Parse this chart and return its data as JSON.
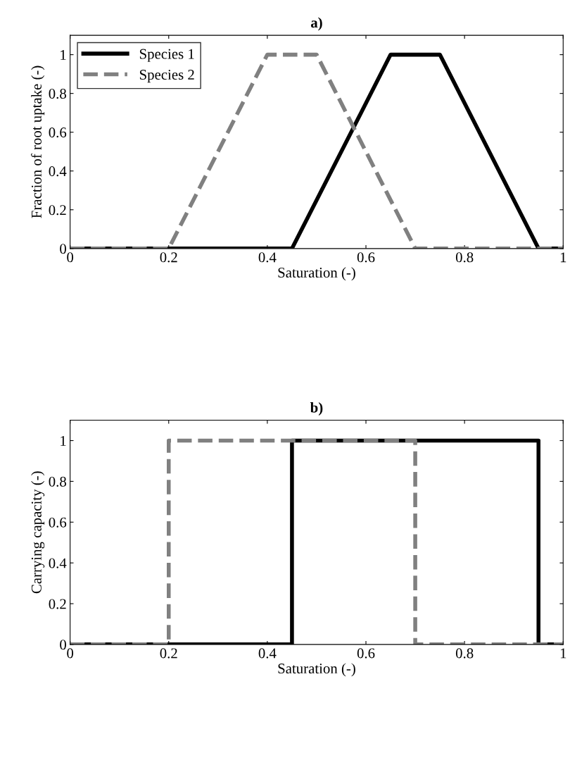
{
  "chart_data": [
    {
      "type": "line",
      "title": "a)",
      "xlabel": "Saturation (-)",
      "ylabel": "Fraction of root uptake (-)",
      "xlim": [
        0,
        1
      ],
      "ylim": [
        0,
        1.1
      ],
      "xticks": [
        0,
        0.2,
        0.4,
        0.6,
        0.8,
        1
      ],
      "yticks": [
        0,
        0.2,
        0.4,
        0.6,
        0.8,
        1
      ],
      "grid": false,
      "legend": "top left",
      "series": [
        {
          "name": "Species 1",
          "color": "#000000",
          "line_style": "solid",
          "x": [
            0,
            0.45,
            0.65,
            0.75,
            0.95,
            1
          ],
          "values": [
            0,
            0,
            1,
            1,
            0,
            0
          ]
        },
        {
          "name": "Species 2",
          "color": "#808080",
          "line_style": "dashed",
          "x": [
            0,
            0.2,
            0.4,
            0.5,
            0.7,
            1
          ],
          "values": [
            0,
            0,
            1,
            1,
            0,
            0
          ]
        }
      ]
    },
    {
      "type": "line",
      "title": "b)",
      "xlabel": "Saturation (-)",
      "ylabel": "Carrying capacity (-)",
      "xlim": [
        0,
        1
      ],
      "ylim": [
        0,
        1.1
      ],
      "xticks": [
        0,
        0.2,
        0.4,
        0.6,
        0.8,
        1
      ],
      "yticks": [
        0,
        0.2,
        0.4,
        0.6,
        0.8,
        1
      ],
      "grid": false,
      "legend": false,
      "series": [
        {
          "color": "#000000",
          "line_style": "solid",
          "x": [
            0,
            0.45,
            0.45,
            0.95,
            0.95,
            1
          ],
          "values": [
            0,
            0,
            1,
            1,
            0,
            0
          ]
        },
        {
          "color": "#808080",
          "line_style": "dashed",
          "x": [
            0,
            0.2,
            0.2,
            0.7,
            0.7,
            1
          ],
          "values": [
            0,
            0,
            1,
            1,
            0,
            0
          ]
        }
      ]
    }
  ]
}
